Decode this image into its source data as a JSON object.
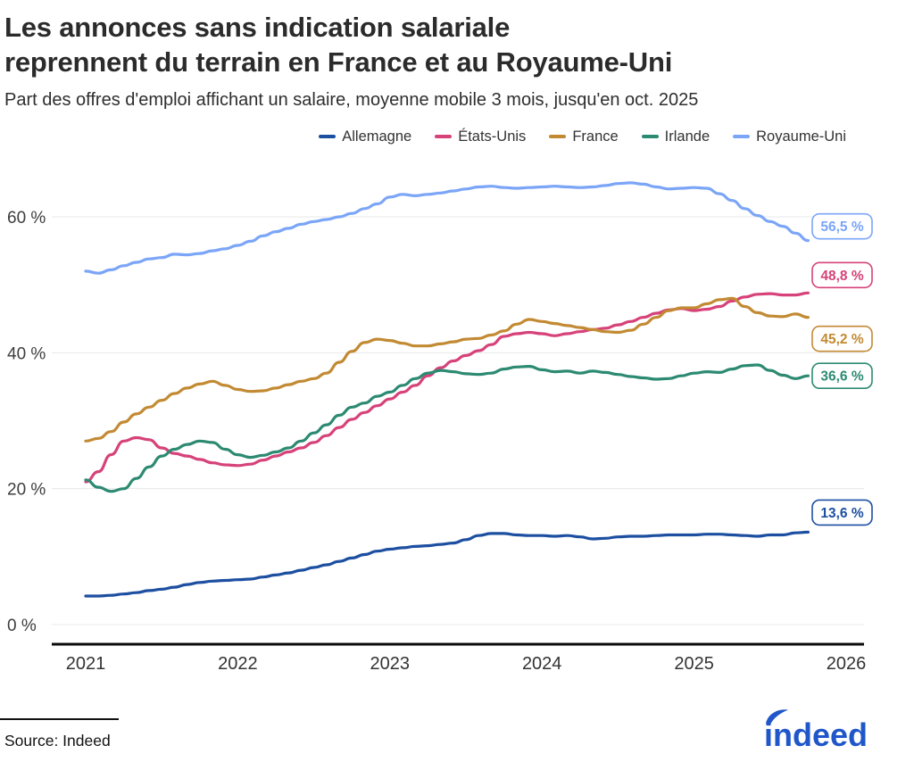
{
  "header": {
    "title_line1": "Les annonces sans indication salariale",
    "title_line2": "reprennent du terrain en France et au Royaume-Uni",
    "subtitle": "Part des offres d'emploi affichant un salaire, moyenne mobile 3 mois, jusqu'en oct. 2025"
  },
  "footer": {
    "source": "Source: Indeed",
    "logo_text": "indeed",
    "logo_color": "#1f56c9"
  },
  "chart_data": {
    "type": "line",
    "title": "Les annonces sans indication salariale reprennent du terrain en France et au Royaume-Uni",
    "subtitle": "Part des offres d'emploi affichant un salaire, moyenne mobile 3 mois, jusqu'en oct. 2025",
    "x_start": "2021-01",
    "x_end": "2025-10",
    "x_frequency": "monthly",
    "x_tick_labels": [
      "2021",
      "2022",
      "2023",
      "2024",
      "2025",
      "2026"
    ],
    "y_ticks": [
      0,
      20,
      40,
      60
    ],
    "y_tick_labels": [
      "0 %",
      "20 %",
      "40 %",
      "60 %"
    ],
    "ylim": [
      0,
      68
    ],
    "grid": "horizontal",
    "legend_position": "top",
    "series": [
      {
        "id": "allemagne",
        "name": "Allemagne",
        "color": "#1d4fa1",
        "end_label": "13,6 %",
        "values": [
          4.2,
          4.2,
          4.3,
          4.5,
          4.7,
          5.0,
          5.2,
          5.5,
          5.9,
          6.2,
          6.4,
          6.5,
          6.6,
          6.7,
          7.0,
          7.3,
          7.6,
          8.0,
          8.4,
          8.8,
          9.3,
          9.8,
          10.3,
          10.8,
          11.1,
          11.3,
          11.5,
          11.6,
          11.8,
          12.0,
          12.5,
          13.1,
          13.4,
          13.4,
          13.2,
          13.1,
          13.1,
          13.0,
          13.1,
          12.9,
          12.6,
          12.7,
          12.9,
          13.0,
          13.0,
          13.1,
          13.2,
          13.2,
          13.2,
          13.3,
          13.3,
          13.2,
          13.1,
          13.0,
          13.2,
          13.2,
          13.5,
          13.6
        ]
      },
      {
        "id": "etats-unis",
        "name": "États-Unis",
        "color": "#d64279",
        "end_label": "48,8 %",
        "values": [
          21.0,
          22.5,
          25.0,
          27.0,
          27.5,
          27.2,
          26.0,
          25.2,
          24.8,
          24.3,
          23.8,
          23.5,
          23.4,
          23.6,
          24.2,
          24.8,
          25.4,
          26.0,
          26.8,
          27.8,
          29.0,
          30.2,
          31.2,
          32.2,
          33.2,
          34.2,
          35.2,
          36.6,
          37.8,
          38.8,
          39.6,
          40.3,
          41.2,
          42.4,
          42.8,
          43.0,
          42.8,
          42.5,
          42.8,
          43.1,
          43.4,
          43.6,
          44.1,
          44.6,
          45.2,
          45.8,
          46.3,
          46.5,
          46.2,
          46.4,
          46.8,
          47.6,
          48.2,
          48.6,
          48.7,
          48.5,
          48.5,
          48.8
        ]
      },
      {
        "id": "france",
        "name": "France",
        "color": "#c28a33",
        "end_label": "45,2 %",
        "values": [
          27.0,
          27.4,
          28.4,
          29.8,
          31.0,
          32.0,
          33.0,
          34.0,
          34.8,
          35.4,
          35.8,
          35.2,
          34.6,
          34.3,
          34.4,
          34.8,
          35.3,
          35.8,
          36.2,
          37.0,
          38.6,
          40.2,
          41.5,
          42.0,
          41.8,
          41.4,
          41.0,
          41.0,
          41.3,
          41.6,
          42.0,
          42.1,
          42.6,
          43.2,
          44.2,
          44.9,
          44.6,
          44.3,
          44.0,
          43.7,
          43.4,
          43.1,
          43.0,
          43.3,
          44.2,
          45.2,
          46.2,
          46.6,
          46.6,
          47.2,
          47.8,
          48.0,
          46.8,
          45.9,
          45.4,
          45.3,
          45.7,
          45.2
        ]
      },
      {
        "id": "irlande",
        "name": "Irlande",
        "color": "#2d8a72",
        "end_label": "36,6 %",
        "values": [
          21.3,
          20.2,
          19.6,
          20.0,
          21.5,
          23.2,
          24.8,
          25.8,
          26.5,
          27.0,
          26.8,
          25.8,
          25.0,
          24.6,
          24.9,
          25.4,
          26.0,
          27.0,
          28.2,
          29.4,
          30.8,
          32.0,
          32.6,
          33.6,
          34.2,
          35.2,
          36.2,
          37.0,
          37.4,
          37.2,
          36.9,
          36.8,
          37.0,
          37.6,
          37.9,
          38.0,
          37.5,
          37.2,
          37.3,
          37.0,
          37.3,
          37.1,
          36.8,
          36.5,
          36.3,
          36.1,
          36.2,
          36.6,
          37.0,
          37.2,
          37.1,
          37.6,
          38.1,
          38.2,
          37.4,
          36.7,
          36.2,
          36.6
        ]
      },
      {
        "id": "royaume-uni",
        "name": "Royaume-Uni",
        "color": "#7ba5f7",
        "end_label": "56,5 %",
        "values": [
          52.0,
          51.7,
          52.2,
          52.8,
          53.3,
          53.8,
          54.0,
          54.5,
          54.4,
          54.6,
          55.0,
          55.3,
          55.8,
          56.4,
          57.2,
          57.8,
          58.3,
          58.9,
          59.3,
          59.6,
          60.0,
          60.5,
          61.2,
          61.9,
          62.9,
          63.3,
          63.1,
          63.3,
          63.5,
          63.8,
          64.1,
          64.4,
          64.5,
          64.3,
          64.2,
          64.3,
          64.4,
          64.5,
          64.4,
          64.3,
          64.4,
          64.6,
          64.9,
          65.0,
          64.8,
          64.4,
          64.1,
          64.2,
          64.3,
          64.2,
          63.4,
          62.4,
          61.2,
          60.2,
          59.3,
          58.6,
          57.6,
          56.5
        ]
      }
    ]
  }
}
